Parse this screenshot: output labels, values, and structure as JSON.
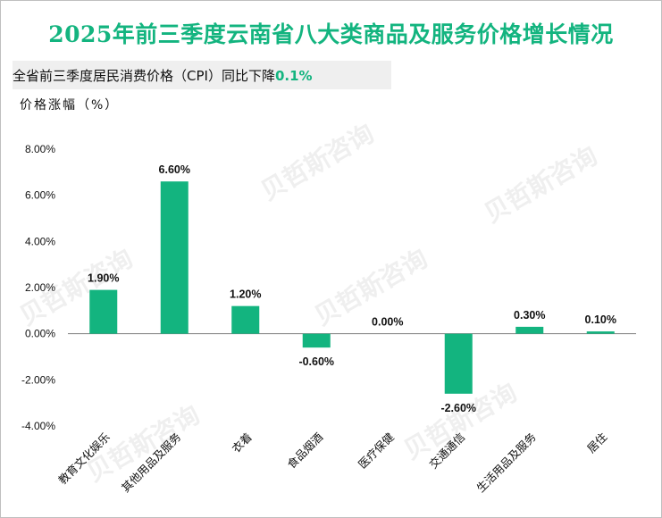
{
  "title": "2025年前三季度云南省八大类商品及服务价格增长情况",
  "subtitle": {
    "text": "全省前三季度居民消费价格（CPI）同比下降",
    "highlight": "0.1%"
  },
  "colors": {
    "accent": "#13b47f",
    "bar": "#13b47f",
    "axis": "#7f7f7f",
    "watermark": "#dcdcdc"
  },
  "watermark": "贝哲斯咨询",
  "chart_data": {
    "type": "bar",
    "ylabel": "价格涨幅（%）",
    "categories": [
      "教育文化娱乐",
      "其他用品及服务",
      "衣着",
      "食品烟酒",
      "医疗保健",
      "交通通信",
      "生活用品及服务",
      "居住"
    ],
    "values": [
      1.9,
      6.6,
      1.2,
      -0.6,
      0.0,
      -2.6,
      0.3,
      0.1
    ],
    "data_labels": [
      "1.90%",
      "6.60%",
      "1.20%",
      "-0.60%",
      "0.00%",
      "-2.60%",
      "0.30%",
      "0.10%"
    ],
    "ylim": [
      -4,
      8
    ],
    "yticks": [
      8,
      6,
      4,
      2,
      0,
      -2,
      -4
    ],
    "ytick_labels": [
      "8.00%",
      "6.00%",
      "4.00%",
      "2.00%",
      "0.00%",
      "-2.00%",
      "-4.00%"
    ],
    "grid": false,
    "legend": "none"
  }
}
